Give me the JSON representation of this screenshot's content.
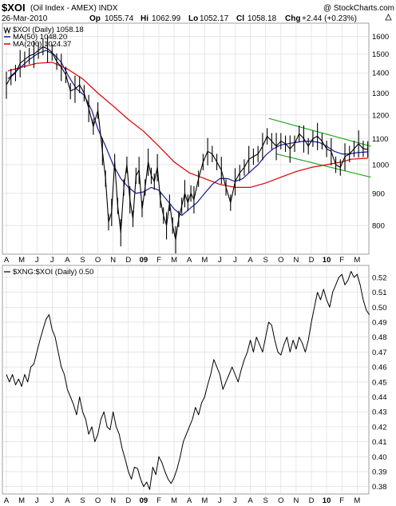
{
  "header": {
    "symbol": "$XOI",
    "name": "(Oil Index - AMEX) INDX",
    "credit": "@ StockCharts.com",
    "date": "26-Mar-2010",
    "open_label": "Op",
    "open": "1055.74",
    "high_label": "Hi",
    "high": "1062.99",
    "low_label": "Lo",
    "low": "1052.17",
    "close_label": "Cl",
    "close": "1058.18",
    "change_label": "Chg",
    "change": "+2.44 (+0.23%)",
    "change_icon": "up-triangle-icon"
  },
  "legend": {
    "price": "$XOI (Daily) 1058.18",
    "ma50": "MA(50) 1048.20",
    "ma200": "MA(200) 1024.37",
    "ratio": "$XNG:$XOI (Daily) 0.50"
  },
  "colors": {
    "price": "#000000",
    "ma50": "#1a1a9a",
    "ma200": "#dd0000",
    "channel": "#22aa22",
    "ratio": "#000000",
    "grid": "#d8d8d8"
  },
  "x_axis": {
    "labels": [
      "A",
      "M",
      "J",
      "J",
      "A",
      "S",
      "O",
      "N",
      "D",
      "09",
      "F",
      "M",
      "A",
      "M",
      "J",
      "J",
      "A",
      "S",
      "O",
      "N",
      "D",
      "10",
      "F",
      "M"
    ]
  },
  "chart_data": [
    {
      "type": "ohlc",
      "title": "$XOI (Daily)",
      "scale": "log",
      "ylim": [
        720,
        1680
      ],
      "yticks": [
        800,
        900,
        1000,
        1100,
        1200,
        1300,
        1400,
        1500,
        1600
      ],
      "grid": true,
      "legend_position": "top-left",
      "price": [
        [
          0,
          1340
        ],
        [
          0.3,
          1380
        ],
        [
          0.6,
          1400
        ],
        [
          0.9,
          1450
        ],
        [
          1.2,
          1470
        ],
        [
          1.5,
          1490
        ],
        [
          1.8,
          1500
        ],
        [
          2.1,
          1520
        ],
        [
          2.4,
          1540
        ],
        [
          2.7,
          1530
        ],
        [
          3.0,
          1510
        ],
        [
          3.3,
          1460
        ],
        [
          3.6,
          1430
        ],
        [
          3.9,
          1390
        ],
        [
          4.2,
          1310
        ],
        [
          4.5,
          1320
        ],
        [
          4.8,
          1340
        ],
        [
          5.1,
          1300
        ],
        [
          5.4,
          1230
        ],
        [
          5.7,
          1150
        ],
        [
          6.0,
          1220
        ],
        [
          6.3,
          1050
        ],
        [
          6.5,
          950
        ],
        [
          6.7,
          810
        ],
        [
          6.9,
          840
        ],
        [
          7.1,
          1010
        ],
        [
          7.3,
          860
        ],
        [
          7.5,
          780
        ],
        [
          7.7,
          920
        ],
        [
          7.9,
          1000
        ],
        [
          8.1,
          880
        ],
        [
          8.3,
          820
        ],
        [
          8.5,
          960
        ],
        [
          8.7,
          980
        ],
        [
          8.9,
          850
        ],
        [
          9.1,
          920
        ],
        [
          9.3,
          1010
        ],
        [
          9.5,
          960
        ],
        [
          9.7,
          940
        ],
        [
          9.9,
          990
        ],
        [
          10.1,
          880
        ],
        [
          10.3,
          830
        ],
        [
          10.5,
          800
        ],
        [
          10.7,
          870
        ],
        [
          10.9,
          800
        ],
        [
          11.1,
          760
        ],
        [
          11.3,
          820
        ],
        [
          11.5,
          860
        ],
        [
          11.7,
          900
        ],
        [
          11.9,
          870
        ],
        [
          12.1,
          900
        ],
        [
          12.3,
          880
        ],
        [
          12.6,
          950
        ],
        [
          12.9,
          1010
        ],
        [
          13.2,
          1050
        ],
        [
          13.5,
          1040
        ],
        [
          13.8,
          1010
        ],
        [
          14.1,
          980
        ],
        [
          14.4,
          920
        ],
        [
          14.7,
          870
        ],
        [
          15.0,
          940
        ],
        [
          15.3,
          970
        ],
        [
          15.6,
          990
        ],
        [
          15.9,
          1020
        ],
        [
          16.2,
          1030
        ],
        [
          16.5,
          1040
        ],
        [
          16.8,
          1070
        ],
        [
          17.1,
          1110
        ],
        [
          17.4,
          1090
        ],
        [
          17.7,
          1070
        ],
        [
          18.0,
          1090
        ],
        [
          18.3,
          1080
        ],
        [
          18.6,
          1060
        ],
        [
          18.9,
          1080
        ],
        [
          19.2,
          1120
        ],
        [
          19.5,
          1100
        ],
        [
          19.8,
          1070
        ],
        [
          20.1,
          1100
        ],
        [
          20.4,
          1110
        ],
        [
          20.7,
          1090
        ],
        [
          21.0,
          1060
        ],
        [
          21.3,
          1050
        ],
        [
          21.6,
          1000
        ],
        [
          21.9,
          990
        ],
        [
          22.2,
          1030
        ],
        [
          22.5,
          1040
        ],
        [
          22.8,
          1060
        ],
        [
          23.1,
          1080
        ],
        [
          23.4,
          1060
        ],
        [
          23.7,
          1058
        ]
      ],
      "ma50": [
        [
          0.1,
          1370
        ],
        [
          0.8,
          1420
        ],
        [
          1.5,
          1470
        ],
        [
          2.1,
          1505
        ],
        [
          2.6,
          1520
        ],
        [
          3.1,
          1500
        ],
        [
          3.6,
          1455
        ],
        [
          4.1,
          1380
        ],
        [
          4.6,
          1320
        ],
        [
          5.1,
          1290
        ],
        [
          5.6,
          1220
        ],
        [
          6.0,
          1140
        ],
        [
          6.5,
          1070
        ],
        [
          7.0,
          1000
        ],
        [
          7.5,
          950
        ],
        [
          8.0,
          920
        ],
        [
          8.5,
          900
        ],
        [
          9.0,
          905
        ],
        [
          9.5,
          920
        ],
        [
          10.0,
          910
        ],
        [
          10.5,
          880
        ],
        [
          11.0,
          850
        ],
        [
          11.5,
          830
        ],
        [
          12.0,
          850
        ],
        [
          12.5,
          870
        ],
        [
          13.0,
          900
        ],
        [
          13.5,
          930
        ],
        [
          14.0,
          950
        ],
        [
          14.5,
          950
        ],
        [
          15.0,
          940
        ],
        [
          15.5,
          950
        ],
        [
          16.0,
          975
        ],
        [
          16.5,
          1000
        ],
        [
          17.0,
          1035
        ],
        [
          17.5,
          1060
        ],
        [
          18.0,
          1075
        ],
        [
          18.5,
          1080
        ],
        [
          19.0,
          1085
        ],
        [
          19.5,
          1090
        ],
        [
          20.0,
          1090
        ],
        [
          20.5,
          1085
        ],
        [
          21.0,
          1070
        ],
        [
          21.5,
          1050
        ],
        [
          22.0,
          1040
        ],
        [
          22.5,
          1040
        ],
        [
          23.0,
          1045
        ],
        [
          23.7,
          1048
        ]
      ],
      "ma200": [
        [
          0.1,
          1410
        ],
        [
          1.0,
          1430
        ],
        [
          2.0,
          1450
        ],
        [
          3.0,
          1455
        ],
        [
          4.0,
          1420
        ],
        [
          5.0,
          1370
        ],
        [
          6.0,
          1300
        ],
        [
          7.0,
          1240
        ],
        [
          8.0,
          1180
        ],
        [
          9.0,
          1130
        ],
        [
          10.0,
          1070
        ],
        [
          11.0,
          1010
        ],
        [
          12.0,
          970
        ],
        [
          13.0,
          950
        ],
        [
          14.0,
          930
        ],
        [
          15.0,
          920
        ],
        [
          16.0,
          920
        ],
        [
          17.0,
          935
        ],
        [
          18.0,
          955
        ],
        [
          19.0,
          975
        ],
        [
          20.0,
          990
        ],
        [
          21.0,
          1000
        ],
        [
          22.0,
          1010
        ],
        [
          22.6,
          1020
        ],
        [
          23.7,
          1024
        ]
      ],
      "channel_upper": [
        [
          17.2,
          1185
        ],
        [
          23.9,
          1070
        ]
      ],
      "channel_lower": [
        [
          17.7,
          1040
        ],
        [
          23.9,
          955
        ]
      ]
    },
    {
      "type": "line",
      "title": "$XNG:$XOI (Daily)",
      "ylim": [
        0.375,
        0.528
      ],
      "yticks": [
        0.38,
        0.39,
        0.4,
        0.41,
        0.42,
        0.43,
        0.44,
        0.45,
        0.46,
        0.47,
        0.48,
        0.49,
        0.5,
        0.51,
        0.52
      ],
      "grid": true,
      "legend_position": "top-left",
      "series": [
        [
          0,
          0.455
        ],
        [
          0.2,
          0.45
        ],
        [
          0.4,
          0.455
        ],
        [
          0.6,
          0.448
        ],
        [
          0.8,
          0.452
        ],
        [
          1.0,
          0.447
        ],
        [
          1.2,
          0.455
        ],
        [
          1.4,
          0.45
        ],
        [
          1.6,
          0.46
        ],
        [
          1.8,
          0.462
        ],
        [
          2.0,
          0.47
        ],
        [
          2.2,
          0.478
        ],
        [
          2.4,
          0.485
        ],
        [
          2.6,
          0.492
        ],
        [
          2.8,
          0.495
        ],
        [
          3.0,
          0.485
        ],
        [
          3.2,
          0.48
        ],
        [
          3.4,
          0.47
        ],
        [
          3.6,
          0.46
        ],
        [
          3.8,
          0.455
        ],
        [
          4.0,
          0.445
        ],
        [
          4.2,
          0.44
        ],
        [
          4.4,
          0.435
        ],
        [
          4.6,
          0.428
        ],
        [
          4.8,
          0.44
        ],
        [
          5.0,
          0.43
        ],
        [
          5.2,
          0.425
        ],
        [
          5.4,
          0.415
        ],
        [
          5.6,
          0.42
        ],
        [
          5.8,
          0.41
        ],
        [
          6.0,
          0.415
        ],
        [
          6.2,
          0.425
        ],
        [
          6.4,
          0.43
        ],
        [
          6.6,
          0.42
        ],
        [
          6.8,
          0.418
        ],
        [
          7.0,
          0.43
        ],
        [
          7.2,
          0.42
        ],
        [
          7.4,
          0.415
        ],
        [
          7.6,
          0.405
        ],
        [
          7.8,
          0.398
        ],
        [
          8.0,
          0.39
        ],
        [
          8.2,
          0.385
        ],
        [
          8.4,
          0.393
        ],
        [
          8.6,
          0.392
        ],
        [
          8.8,
          0.385
        ],
        [
          9.0,
          0.38
        ],
        [
          9.2,
          0.383
        ],
        [
          9.4,
          0.378
        ],
        [
          9.6,
          0.393
        ],
        [
          9.8,
          0.388
        ],
        [
          10.0,
          0.4
        ],
        [
          10.2,
          0.396
        ],
        [
          10.4,
          0.39
        ],
        [
          10.6,
          0.385
        ],
        [
          10.8,
          0.382
        ],
        [
          11.0,
          0.386
        ],
        [
          11.2,
          0.392
        ],
        [
          11.4,
          0.4
        ],
        [
          11.6,
          0.41
        ],
        [
          11.8,
          0.415
        ],
        [
          12.0,
          0.42
        ],
        [
          12.2,
          0.425
        ],
        [
          12.4,
          0.433
        ],
        [
          12.6,
          0.428
        ],
        [
          12.8,
          0.436
        ],
        [
          13.0,
          0.44
        ],
        [
          13.2,
          0.448
        ],
        [
          13.4,
          0.455
        ],
        [
          13.6,
          0.465
        ],
        [
          13.8,
          0.46
        ],
        [
          14.0,
          0.455
        ],
        [
          14.2,
          0.445
        ],
        [
          14.4,
          0.45
        ],
        [
          14.6,
          0.455
        ],
        [
          14.8,
          0.46
        ],
        [
          15.0,
          0.455
        ],
        [
          15.2,
          0.45
        ],
        [
          15.4,
          0.458
        ],
        [
          15.6,
          0.465
        ],
        [
          15.8,
          0.47
        ],
        [
          16.0,
          0.478
        ],
        [
          16.2,
          0.47
        ],
        [
          16.4,
          0.48
        ],
        [
          16.6,
          0.475
        ],
        [
          16.8,
          0.47
        ],
        [
          17.0,
          0.48
        ],
        [
          17.2,
          0.49
        ],
        [
          17.4,
          0.488
        ],
        [
          17.6,
          0.478
        ],
        [
          17.8,
          0.47
        ],
        [
          18.0,
          0.468
        ],
        [
          18.2,
          0.475
        ],
        [
          18.4,
          0.48
        ],
        [
          18.6,
          0.47
        ],
        [
          18.8,
          0.478
        ],
        [
          19.0,
          0.472
        ],
        [
          19.2,
          0.48
        ],
        [
          19.4,
          0.476
        ],
        [
          19.6,
          0.47
        ],
        [
          19.8,
          0.478
        ],
        [
          20.0,
          0.49
        ],
        [
          20.2,
          0.5
        ],
        [
          20.4,
          0.51
        ],
        [
          20.6,
          0.505
        ],
        [
          20.8,
          0.512
        ],
        [
          21.0,
          0.505
        ],
        [
          21.2,
          0.5
        ],
        [
          21.4,
          0.51
        ],
        [
          21.6,
          0.515
        ],
        [
          21.8,
          0.52
        ],
        [
          22.0,
          0.522
        ],
        [
          22.2,
          0.515
        ],
        [
          22.4,
          0.518
        ],
        [
          22.6,
          0.524
        ],
        [
          22.8,
          0.52
        ],
        [
          23.0,
          0.522
        ],
        [
          23.2,
          0.515
        ],
        [
          23.4,
          0.505
        ],
        [
          23.6,
          0.498
        ],
        [
          23.8,
          0.495
        ]
      ]
    }
  ]
}
